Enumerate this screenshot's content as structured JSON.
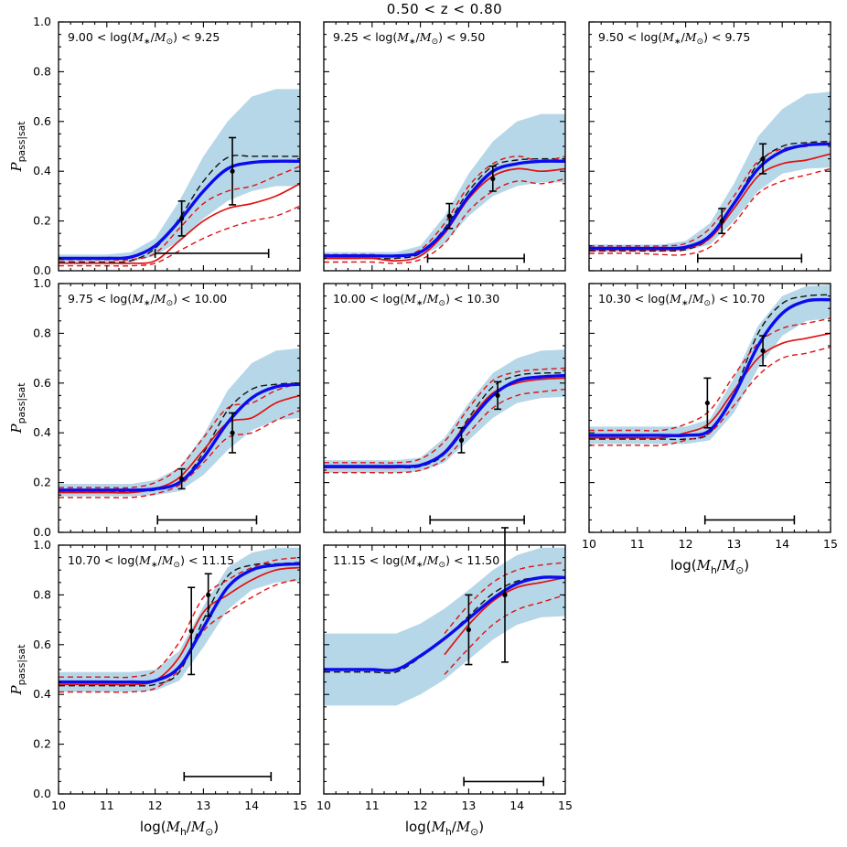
{
  "title": "0.50 < z < 0.80",
  "figure": {
    "colors": {
      "band": "#b6d7e8",
      "blue": "#0b0bee",
      "red": "#e01010",
      "black": "#111111"
    },
    "xlabel_segments": [
      {
        "t": "log("
      },
      {
        "t": "M",
        "i": true
      },
      {
        "t": "h",
        "sub": true
      },
      {
        "t": "/"
      },
      {
        "t": "M",
        "i": true
      },
      {
        "t": "⊙",
        "sub": true
      },
      {
        "t": ")"
      }
    ],
    "ylabel_segments": [
      {
        "t": "P",
        "i": true
      },
      {
        "t": "pass|sat",
        "sub": true
      }
    ],
    "mass_label_segments": [
      {
        "t": "< log("
      },
      {
        "t": "M",
        "i": true
      },
      {
        "t": "∗",
        "sub": true
      },
      {
        "t": "/"
      },
      {
        "t": "M",
        "i": true
      },
      {
        "t": "⊙",
        "sub": true
      },
      {
        "t": ") < "
      }
    ]
  },
  "chart_data": {
    "type": "line",
    "title": "0.50 < z < 0.80",
    "xlabel": "log(M_h/M_sun)",
    "ylabel": "P_pass|sat",
    "xlim": [
      10,
      15
    ],
    "ylim": [
      0,
      1
    ],
    "x_tick_labels": [
      "10",
      "11",
      "12",
      "13",
      "14",
      "15"
    ],
    "y_tick_labels": [
      "0.0",
      "0.2",
      "0.4",
      "0.6",
      "0.8",
      "1.0"
    ],
    "x": [
      10,
      10.5,
      11,
      11.5,
      12,
      12.5,
      13,
      13.5,
      14,
      14.5,
      15
    ],
    "panels": [
      {
        "label": "9.00 < log(M*/Msun) < 9.25",
        "mass_lo": "9.00",
        "mass_hi": "9.25",
        "blue": [
          0.05,
          0.05,
          0.05,
          0.055,
          0.1,
          0.2,
          0.32,
          0.41,
          0.435,
          0.44,
          0.44
        ],
        "band_hi": [
          0.065,
          0.065,
          0.065,
          0.075,
          0.13,
          0.28,
          0.46,
          0.6,
          0.7,
          0.73,
          0.73
        ],
        "band_lo": [
          0.03,
          0.03,
          0.03,
          0.035,
          0.06,
          0.12,
          0.21,
          0.28,
          0.32,
          0.34,
          0.34
        ],
        "red": [
          0.03,
          0.03,
          0.03,
          0.03,
          0.04,
          0.12,
          0.2,
          0.25,
          0.27,
          0.3,
          0.35
        ],
        "red_hi": [
          0.045,
          0.045,
          0.045,
          0.045,
          0.07,
          0.17,
          0.27,
          0.32,
          0.34,
          0.38,
          0.42
        ],
        "red_lo": [
          0.02,
          0.02,
          0.02,
          0.02,
          0.03,
          0.08,
          0.13,
          0.17,
          0.2,
          0.22,
          0.26
        ],
        "black_dashed": [
          0.035,
          0.035,
          0.035,
          0.04,
          0.09,
          0.21,
          0.36,
          0.455,
          0.46,
          0.46,
          0.46
        ],
        "points": [
          {
            "x": 12.55,
            "y": 0.21,
            "err": 0.07
          },
          {
            "x": 13.6,
            "y": 0.4,
            "err": 0.135
          }
        ],
        "hbar": {
          "y": 0.07,
          "x1": 12.0,
          "x2": 14.35
        }
      },
      {
        "label": "9.25 < log(M*/Msun) < 9.50",
        "mass_lo": "9.25",
        "mass_hi": "9.50",
        "blue": [
          0.06,
          0.06,
          0.06,
          0.06,
          0.075,
          0.16,
          0.3,
          0.4,
          0.43,
          0.44,
          0.44
        ],
        "band_hi": [
          0.075,
          0.075,
          0.075,
          0.075,
          0.1,
          0.22,
          0.39,
          0.52,
          0.6,
          0.63,
          0.63
        ],
        "band_lo": [
          0.045,
          0.045,
          0.045,
          0.045,
          0.055,
          0.11,
          0.22,
          0.3,
          0.34,
          0.355,
          0.355
        ],
        "red": [
          0.05,
          0.05,
          0.05,
          0.04,
          0.06,
          0.15,
          0.29,
          0.38,
          0.41,
          0.4,
          0.41
        ],
        "red_hi": [
          0.065,
          0.065,
          0.065,
          0.06,
          0.085,
          0.19,
          0.34,
          0.43,
          0.46,
          0.44,
          0.46
        ],
        "red_lo": [
          0.035,
          0.035,
          0.035,
          0.03,
          0.045,
          0.11,
          0.24,
          0.32,
          0.36,
          0.35,
          0.37
        ],
        "black_dashed": [
          0.05,
          0.05,
          0.05,
          0.05,
          0.07,
          0.17,
          0.32,
          0.42,
          0.445,
          0.45,
          0.45
        ],
        "points": [
          {
            "x": 12.6,
            "y": 0.22,
            "err": 0.05
          },
          {
            "x": 13.5,
            "y": 0.37,
            "err": 0.05
          }
        ],
        "hbar": {
          "y": 0.05,
          "x1": 12.15,
          "x2": 14.15
        }
      },
      {
        "label": "9.50 < log(M*/Msun) < 9.75",
        "mass_lo": "9.50",
        "mass_hi": "9.75",
        "blue": [
          0.09,
          0.09,
          0.09,
          0.09,
          0.095,
          0.14,
          0.27,
          0.41,
          0.48,
          0.505,
          0.51
        ],
        "band_hi": [
          0.105,
          0.105,
          0.105,
          0.105,
          0.12,
          0.19,
          0.35,
          0.54,
          0.65,
          0.71,
          0.72
        ],
        "band_lo": [
          0.075,
          0.075,
          0.075,
          0.075,
          0.08,
          0.105,
          0.2,
          0.32,
          0.39,
          0.41,
          0.415
        ],
        "red": [
          0.085,
          0.085,
          0.085,
          0.085,
          0.09,
          0.13,
          0.25,
          0.38,
          0.43,
          0.445,
          0.47
        ],
        "red_hi": [
          0.1,
          0.1,
          0.1,
          0.1,
          0.11,
          0.17,
          0.3,
          0.44,
          0.49,
          0.5,
          0.52
        ],
        "red_lo": [
          0.07,
          0.07,
          0.07,
          0.065,
          0.065,
          0.095,
          0.19,
          0.31,
          0.36,
          0.385,
          0.41
        ],
        "black_dashed": [
          0.08,
          0.08,
          0.08,
          0.08,
          0.085,
          0.13,
          0.27,
          0.43,
          0.5,
          0.515,
          0.52
        ],
        "points": [
          {
            "x": 12.75,
            "y": 0.2,
            "err": 0.05
          },
          {
            "x": 13.6,
            "y": 0.45,
            "err": 0.06
          }
        ],
        "hbar": {
          "y": 0.05,
          "x1": 12.25,
          "x2": 14.4
        }
      },
      {
        "label": "9.75 < log(M*/Msun) < 10.00",
        "mass_lo": "9.75",
        "mass_hi": "10.00",
        "blue": [
          0.17,
          0.17,
          0.17,
          0.17,
          0.175,
          0.2,
          0.3,
          0.44,
          0.54,
          0.585,
          0.595
        ],
        "band_hi": [
          0.195,
          0.195,
          0.195,
          0.195,
          0.21,
          0.26,
          0.39,
          0.57,
          0.68,
          0.73,
          0.74
        ],
        "band_lo": [
          0.145,
          0.145,
          0.145,
          0.145,
          0.15,
          0.165,
          0.23,
          0.33,
          0.41,
          0.45,
          0.46
        ],
        "red": [
          0.16,
          0.16,
          0.16,
          0.16,
          0.175,
          0.22,
          0.33,
          0.44,
          0.46,
          0.52,
          0.55
        ],
        "red_hi": [
          0.18,
          0.18,
          0.18,
          0.18,
          0.2,
          0.26,
          0.38,
          0.5,
          0.52,
          0.57,
          0.6
        ],
        "red_lo": [
          0.14,
          0.14,
          0.14,
          0.14,
          0.155,
          0.19,
          0.28,
          0.38,
          0.4,
          0.45,
          0.49
        ],
        "black_dashed": [
          0.165,
          0.165,
          0.165,
          0.165,
          0.17,
          0.2,
          0.32,
          0.49,
          0.575,
          0.595,
          0.6
        ],
        "points": [
          {
            "x": 12.55,
            "y": 0.215,
            "err": 0.04
          },
          {
            "x": 13.6,
            "y": 0.4,
            "err": 0.08
          }
        ],
        "hbar": {
          "y": 0.05,
          "x1": 12.05,
          "x2": 14.1
        }
      },
      {
        "label": "10.00 < log(M*/Msun) < 10.30",
        "mass_lo": "10.00",
        "mass_hi": "10.30",
        "blue": [
          0.265,
          0.265,
          0.265,
          0.265,
          0.27,
          0.32,
          0.44,
          0.55,
          0.61,
          0.625,
          0.63
        ],
        "band_hi": [
          0.29,
          0.29,
          0.29,
          0.29,
          0.3,
          0.38,
          0.52,
          0.64,
          0.7,
          0.73,
          0.735
        ],
        "band_lo": [
          0.24,
          0.24,
          0.24,
          0.24,
          0.245,
          0.28,
          0.37,
          0.46,
          0.52,
          0.54,
          0.545
        ],
        "red": [
          0.26,
          0.26,
          0.26,
          0.26,
          0.27,
          0.325,
          0.45,
          0.56,
          0.6,
          0.615,
          0.62
        ],
        "red_hi": [
          0.28,
          0.28,
          0.28,
          0.28,
          0.295,
          0.365,
          0.5,
          0.61,
          0.645,
          0.655,
          0.66
        ],
        "red_lo": [
          0.24,
          0.24,
          0.24,
          0.24,
          0.25,
          0.295,
          0.4,
          0.5,
          0.55,
          0.565,
          0.575
        ],
        "black_dashed": [
          0.26,
          0.26,
          0.26,
          0.26,
          0.265,
          0.315,
          0.46,
          0.585,
          0.63,
          0.64,
          0.64
        ],
        "points": [
          {
            "x": 12.85,
            "y": 0.37,
            "err": 0.05
          },
          {
            "x": 13.6,
            "y": 0.55,
            "err": 0.055
          }
        ],
        "hbar": {
          "y": 0.05,
          "x1": 12.2,
          "x2": 14.15
        }
      },
      {
        "label": "10.30 < log(M*/Msun) < 10.70",
        "mass_lo": "10.30",
        "mass_hi": "10.70",
        "blue": [
          0.39,
          0.39,
          0.39,
          0.39,
          0.39,
          0.41,
          0.55,
          0.75,
          0.88,
          0.93,
          0.935
        ],
        "band_hi": [
          0.425,
          0.425,
          0.425,
          0.425,
          0.425,
          0.455,
          0.62,
          0.83,
          0.95,
          0.99,
          0.995
        ],
        "band_lo": [
          0.355,
          0.355,
          0.355,
          0.355,
          0.355,
          0.37,
          0.48,
          0.66,
          0.79,
          0.85,
          0.86
        ],
        "red": [
          0.38,
          0.38,
          0.38,
          0.38,
          0.4,
          0.44,
          0.57,
          0.7,
          0.76,
          0.78,
          0.8
        ],
        "red_hi": [
          0.41,
          0.41,
          0.41,
          0.41,
          0.435,
          0.49,
          0.63,
          0.76,
          0.82,
          0.84,
          0.86
        ],
        "red_lo": [
          0.35,
          0.35,
          0.35,
          0.35,
          0.37,
          0.4,
          0.51,
          0.63,
          0.7,
          0.72,
          0.745
        ],
        "black_dashed": [
          0.375,
          0.375,
          0.375,
          0.375,
          0.375,
          0.4,
          0.56,
          0.8,
          0.92,
          0.95,
          0.955
        ],
        "points": [
          {
            "x": 12.45,
            "y": 0.52,
            "err": 0.1
          },
          {
            "x": 13.6,
            "y": 0.73,
            "err": 0.06
          }
        ],
        "hbar": {
          "y": 0.05,
          "x1": 12.4,
          "x2": 14.25
        }
      },
      {
        "label": "10.70 < log(M*/Msun) < 11.15",
        "mass_lo": "10.70",
        "mass_hi": "11.15",
        "blue": [
          0.45,
          0.45,
          0.45,
          0.45,
          0.455,
          0.51,
          0.67,
          0.83,
          0.9,
          0.92,
          0.925
        ],
        "band_hi": [
          0.49,
          0.49,
          0.49,
          0.49,
          0.5,
          0.575,
          0.755,
          0.91,
          0.97,
          0.99,
          0.99
        ],
        "band_lo": [
          0.41,
          0.41,
          0.41,
          0.41,
          0.415,
          0.455,
          0.59,
          0.74,
          0.82,
          0.85,
          0.855
        ],
        "red": [
          0.44,
          0.44,
          0.44,
          0.44,
          0.455,
          0.55,
          0.73,
          0.8,
          0.86,
          0.9,
          0.91
        ],
        "red_hi": [
          0.47,
          0.47,
          0.47,
          0.47,
          0.495,
          0.61,
          0.79,
          0.86,
          0.91,
          0.94,
          0.95
        ],
        "red_lo": [
          0.41,
          0.41,
          0.41,
          0.41,
          0.425,
          0.5,
          0.655,
          0.73,
          0.79,
          0.84,
          0.865
        ],
        "black_dashed": [
          0.435,
          0.435,
          0.435,
          0.435,
          0.44,
          0.49,
          0.7,
          0.875,
          0.92,
          0.925,
          0.93
        ],
        "points": [
          {
            "x": 12.75,
            "y": 0.655,
            "err": 0.175
          },
          {
            "x": 13.1,
            "y": 0.8,
            "err": 0.085
          }
        ],
        "hbar": {
          "y": 0.07,
          "x1": 12.6,
          "x2": 14.4
        }
      },
      {
        "label": "11.15 < log(M*/Msun) < 11.50",
        "mass_lo": "11.15",
        "mass_hi": "11.50",
        "blue": [
          0.5,
          0.5,
          0.5,
          0.5,
          0.555,
          0.625,
          0.705,
          0.785,
          0.845,
          0.87,
          0.87
        ],
        "band_hi": [
          0.645,
          0.645,
          0.645,
          0.645,
          0.685,
          0.745,
          0.82,
          0.9,
          0.96,
          0.99,
          0.99
        ],
        "band_lo": [
          0.355,
          0.355,
          0.355,
          0.355,
          0.4,
          0.46,
          0.54,
          0.62,
          0.68,
          0.71,
          0.715
        ],
        "red": [
          null,
          null,
          null,
          null,
          null,
          0.56,
          0.68,
          0.775,
          0.83,
          0.85,
          0.87
        ],
        "red_hi": [
          null,
          null,
          null,
          null,
          null,
          0.645,
          0.76,
          0.85,
          0.9,
          0.92,
          0.93
        ],
        "red_lo": [
          null,
          null,
          null,
          null,
          null,
          0.48,
          0.585,
          0.68,
          0.74,
          0.77,
          0.8
        ],
        "black_dashed": [
          0.49,
          0.49,
          0.49,
          0.49,
          0.55,
          0.625,
          0.715,
          0.805,
          0.855,
          0.87,
          0.87
        ],
        "points": [
          {
            "x": 13.0,
            "y": 0.66,
            "err": 0.14
          },
          {
            "x": 13.75,
            "y": 0.8,
            "err": 0.27
          }
        ],
        "hbar": {
          "y": 0.05,
          "x1": 12.9,
          "x2": 14.55
        }
      }
    ]
  }
}
